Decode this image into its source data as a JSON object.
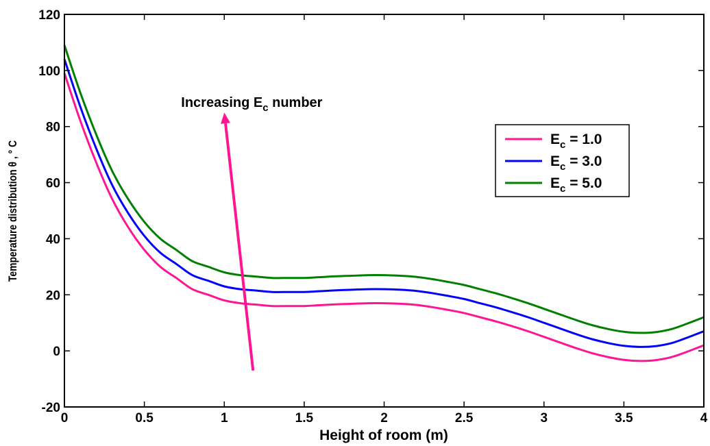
{
  "chart_data": {
    "type": "line",
    "title": "",
    "xlabel": "Height of room (m)",
    "ylabel": "Temperature distribution θ , ° C",
    "xlim": [
      0,
      4
    ],
    "ylim": [
      -20,
      120
    ],
    "xticks": [
      0,
      0.5,
      1,
      1.5,
      2,
      2.5,
      3,
      3.5,
      4
    ],
    "xtick_labels": [
      "0",
      "0.5",
      "1",
      "1.5",
      "2",
      "2.5",
      "3",
      "3.5",
      "4"
    ],
    "yticks": [
      -20,
      0,
      20,
      40,
      60,
      80,
      100,
      120
    ],
    "ytick_labels": [
      "-20",
      "0",
      "20",
      "40",
      "60",
      "80",
      "100",
      "120"
    ],
    "grid": false,
    "legend_position": "top-right",
    "x": [
      0,
      0.1,
      0.2,
      0.3,
      0.4,
      0.5,
      0.6,
      0.7,
      0.8,
      0.9,
      1.0,
      1.1,
      1.2,
      1.3,
      1.4,
      1.5,
      1.6,
      1.7,
      1.8,
      1.9,
      2.0,
      2.1,
      2.2,
      2.3,
      2.4,
      2.5,
      2.6,
      2.7,
      2.8,
      2.9,
      3.0,
      3.1,
      3.2,
      3.3,
      3.4,
      3.5,
      3.6,
      3.7,
      3.8,
      3.9,
      4.0
    ],
    "series": [
      {
        "name": "E",
        "subscript": "c",
        "value_text": " = 1.0",
        "color": "#ff1493",
        "values": [
          99,
          82,
          67,
          54,
          44,
          36,
          30,
          26,
          22,
          20,
          18,
          17,
          16.5,
          16,
          16,
          16,
          16.3,
          16.6,
          16.8,
          17,
          17,
          16.8,
          16.4,
          15.6,
          14.6,
          13.5,
          12,
          10.5,
          8.8,
          7,
          5,
          3,
          1,
          -0.8,
          -2.2,
          -3.2,
          -3.6,
          -3.3,
          -2.2,
          -0.2,
          2
        ]
      },
      {
        "name": "E",
        "subscript": "c",
        "value_text": " = 3.0",
        "color": "#0000ff",
        "values": [
          104,
          87,
          72,
          59,
          49,
          41,
          35,
          31,
          27,
          25,
          23,
          22,
          21.5,
          21,
          21,
          21,
          21.3,
          21.6,
          21.8,
          22,
          22,
          21.8,
          21.4,
          20.6,
          19.6,
          18.5,
          17,
          15.5,
          13.8,
          12,
          10,
          8,
          6,
          4.2,
          2.8,
          1.8,
          1.4,
          1.7,
          2.8,
          4.8,
          7
        ]
      },
      {
        "name": "E",
        "subscript": "c",
        "value_text": " = 5.0",
        "color": "#008000",
        "values": [
          109,
          92,
          77,
          64,
          54,
          46,
          40,
          36,
          32,
          30,
          28,
          27,
          26.5,
          26,
          26,
          26,
          26.3,
          26.6,
          26.8,
          27,
          27,
          26.8,
          26.4,
          25.6,
          24.6,
          23.5,
          22,
          20.5,
          18.8,
          17,
          15,
          13,
          11,
          9.2,
          7.8,
          6.8,
          6.4,
          6.7,
          7.8,
          9.8,
          12
        ]
      }
    ],
    "annotation": {
      "text_prefix": "Increasing E",
      "text_subscript": "c",
      "text_suffix": " number",
      "arrow_color": "#ff1493",
      "arrow_from": [
        1.18,
        -7
      ],
      "arrow_to": [
        1.0,
        85
      ],
      "text_anchor": [
        0.73,
        87
      ]
    }
  }
}
